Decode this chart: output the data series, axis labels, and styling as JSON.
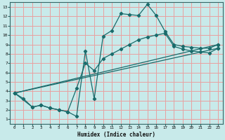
{
  "xlabel": "Humidex (Indice chaleur)",
  "background_color": "#c8eaea",
  "grid_color": "#e8a0a0",
  "line_color": "#1a6b6b",
  "xlim": [
    -0.5,
    23.5
  ],
  "ylim": [
    0.5,
    13.5
  ],
  "xticks": [
    0,
    1,
    2,
    3,
    4,
    5,
    6,
    7,
    8,
    9,
    10,
    11,
    12,
    13,
    14,
    15,
    16,
    17,
    18,
    19,
    20,
    21,
    22,
    23
  ],
  "yticks": [
    1,
    2,
    3,
    4,
    5,
    6,
    7,
    8,
    9,
    10,
    11,
    12,
    13
  ],
  "line1_x": [
    0,
    1,
    2,
    3,
    4,
    5,
    6,
    7,
    8,
    9,
    10,
    11,
    12,
    13,
    14,
    15,
    16,
    17,
    18,
    19,
    20,
    21,
    22,
    23
  ],
  "line1_y": [
    3.8,
    3.2,
    2.3,
    2.5,
    2.2,
    2.0,
    1.8,
    1.3,
    8.3,
    3.2,
    9.9,
    10.5,
    12.3,
    12.2,
    12.1,
    13.3,
    12.1,
    10.4,
    9.0,
    8.8,
    8.7,
    8.6,
    8.6,
    9.0
  ],
  "line2_x": [
    0,
    2,
    3,
    4,
    5,
    6,
    7,
    8,
    9,
    10,
    11,
    12,
    13,
    14,
    15,
    16,
    17,
    18,
    19,
    20,
    21,
    22,
    23
  ],
  "line2_y": [
    3.8,
    2.3,
    2.5,
    2.2,
    2.0,
    1.8,
    4.3,
    7.0,
    6.2,
    7.5,
    8.0,
    8.5,
    9.0,
    9.5,
    9.8,
    10.0,
    10.2,
    8.8,
    8.5,
    8.3,
    8.2,
    8.1,
    8.6
  ],
  "line3_x": [
    0,
    23
  ],
  "line3_y": [
    3.8,
    9.0
  ],
  "line4_x": [
    0,
    23
  ],
  "line4_y": [
    3.8,
    8.6
  ]
}
